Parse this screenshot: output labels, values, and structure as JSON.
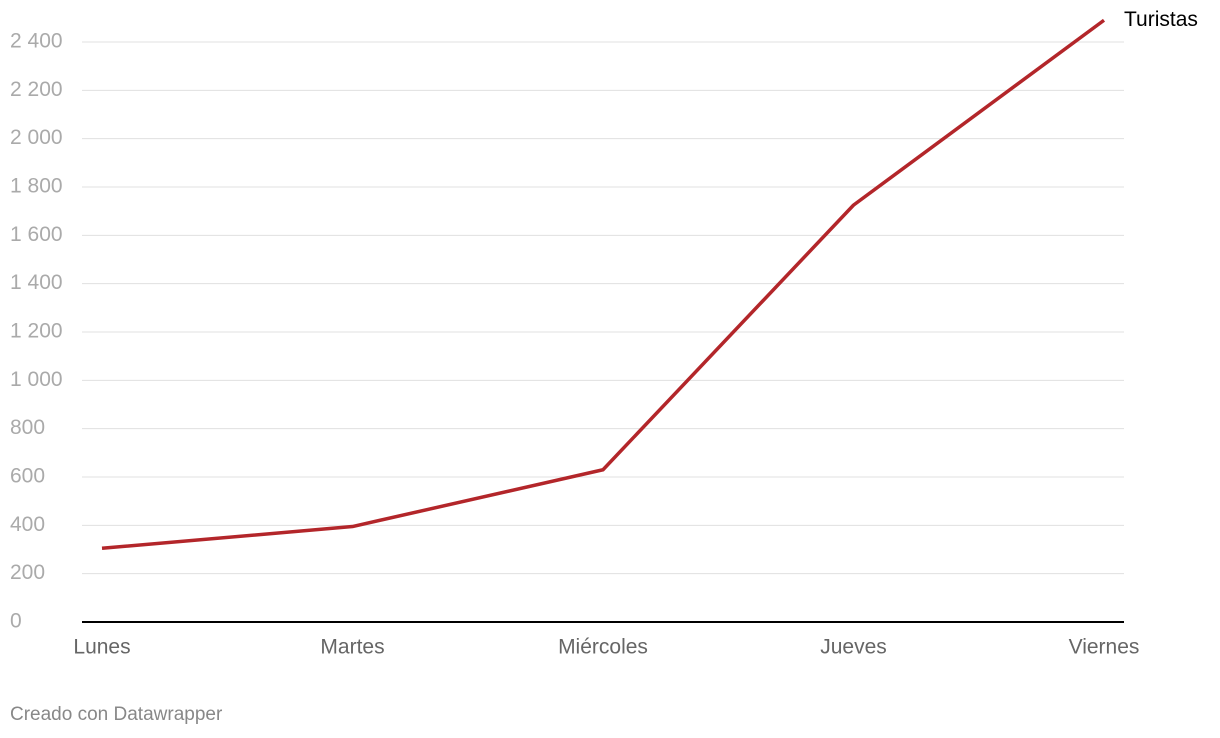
{
  "chart_data": {
    "type": "line",
    "categories": [
      "Lunes",
      "Martes",
      "Miércoles",
      "Jueves",
      "Viernes"
    ],
    "series": [
      {
        "name": "Turistas",
        "color": "#b3262a",
        "values": [
          305,
          395,
          630,
          1725,
          2490
        ]
      }
    ],
    "ylim": [
      0,
      2400
    ],
    "yticks": [
      0,
      200,
      400,
      600,
      800,
      {
        "value": 1000,
        "label": "1 000"
      },
      {
        "value": 1200,
        "label": "1 200"
      },
      {
        "value": 1400,
        "label": "1 400"
      },
      {
        "value": 1600,
        "label": "1 600"
      },
      {
        "value": 1800,
        "label": "1 800"
      },
      {
        "value": 2000,
        "label": "2 000"
      },
      {
        "value": 2200,
        "label": "2 200"
      },
      {
        "value": 2400,
        "label": "2 400"
      }
    ],
    "grid": true,
    "source": "Creado con Datawrapper"
  }
}
